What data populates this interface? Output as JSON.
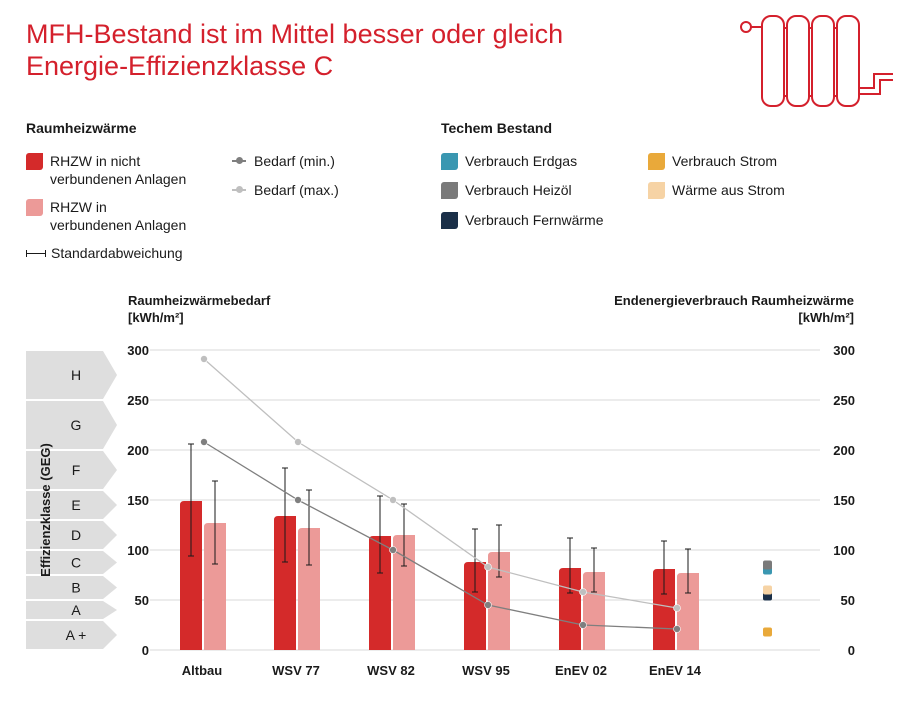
{
  "title": {
    "line1": "MFH-Bestand ist im Mittel besser oder gleich",
    "line2": "Energie-Effizienzklasse C"
  },
  "legend": {
    "left_heading": "Raumheizwärme",
    "right_heading": "Techem Bestand",
    "rhzw_nicht": "RHZW in nicht\nverbundenen Anlagen",
    "rhzw_verbunden": "RHZW in\nverbundenen Anlagen",
    "standardabweichung": "Standardabweichung",
    "bedarf_min": "Bedarf (min.)",
    "bedarf_max": "Bedarf (max.)",
    "erdgas": "Verbrauch Erdgas",
    "heizoel": "Verbrauch Heizöl",
    "fernwaerme": "Verbrauch Fernwärme",
    "strom": "Verbrauch Strom",
    "waerme_strom": "Wärme aus Strom"
  },
  "axis_titles": {
    "left_line1": "Raumheizwärmebedarf",
    "left_line2": "[kWh/m²]",
    "right_line1": "Endenergieverbrauch Raumheizwärme",
    "right_line2": "[kWh/m²]",
    "vertical": "Effizienzklasse (GEG)"
  },
  "colors": {
    "title": "#d4202c",
    "dark_red": "#d42a2a",
    "light_red": "#ec9a98",
    "bedarf_min": "#7f7f7f",
    "bedarf_max": "#bfbfbf",
    "erdgas": "#3a97b1",
    "heizoel": "#7a7a7a",
    "fernwaerme": "#1a2f48",
    "strom": "#e9a93a",
    "waerme_strom": "#f6d3a5",
    "class_band": "#dedede"
  },
  "chart_data": {
    "type": "bar",
    "categories": [
      "Altbau",
      "WSV 77",
      "WSV 82",
      "WSV 95",
      "EnEV 02",
      "EnEV 14"
    ],
    "ylim": [
      0,
      300
    ],
    "yticks": [
      0,
      50,
      100,
      150,
      200,
      250,
      300
    ],
    "grid": true,
    "series": [
      {
        "name": "RHZW in nicht verbundenen Anlagen",
        "type": "bar",
        "color": "#d42a2a",
        "values": [
          149,
          134,
          114,
          88,
          82,
          81
        ],
        "error_low": [
          94,
          88,
          77,
          58,
          57,
          56
        ],
        "error_high": [
          206,
          182,
          154,
          121,
          112,
          109
        ]
      },
      {
        "name": "RHZW in verbundenen Anlagen",
        "type": "bar",
        "color": "#ec9a98",
        "values": [
          127,
          122,
          115,
          98,
          78,
          77
        ],
        "error_low": [
          86,
          85,
          84,
          73,
          58,
          57
        ],
        "error_high": [
          169,
          160,
          146,
          125,
          102,
          101
        ]
      },
      {
        "name": "Bedarf (min.)",
        "type": "line",
        "color": "#7f7f7f",
        "values": [
          208,
          150,
          100,
          45,
          25,
          21
        ]
      },
      {
        "name": "Bedarf (max.)",
        "type": "line",
        "color": "#bfbfbf",
        "values": [
          291,
          208,
          150,
          83,
          58,
          42
        ]
      }
    ],
    "techem_bestand": [
      {
        "name": "Verbrauch Erdgas",
        "color": "#3a97b1",
        "value": 80
      },
      {
        "name": "Verbrauch Heizöl",
        "color": "#7a7a7a",
        "value": 85
      },
      {
        "name": "Verbrauch Fernwärme",
        "color": "#1a2f48",
        "value": 54
      },
      {
        "name": "Verbrauch Strom",
        "color": "#e9a93a",
        "value": 18
      },
      {
        "name": "Wärme aus Strom",
        "color": "#f6d3a5",
        "value": 60
      }
    ],
    "efficiency_classes": [
      {
        "label": "H",
        "min": 250,
        "max": 300
      },
      {
        "label": "G",
        "min": 200,
        "max": 250
      },
      {
        "label": "F",
        "min": 160,
        "max": 200
      },
      {
        "label": "E",
        "min": 130,
        "max": 160
      },
      {
        "label": "D",
        "min": 100,
        "max": 130
      },
      {
        "label": "C",
        "min": 75,
        "max": 100
      },
      {
        "label": "B",
        "min": 50,
        "max": 75
      },
      {
        "label": "A",
        "min": 30,
        "max": 50
      },
      {
        "label": "A +",
        "min": 0,
        "max": 30
      }
    ]
  }
}
